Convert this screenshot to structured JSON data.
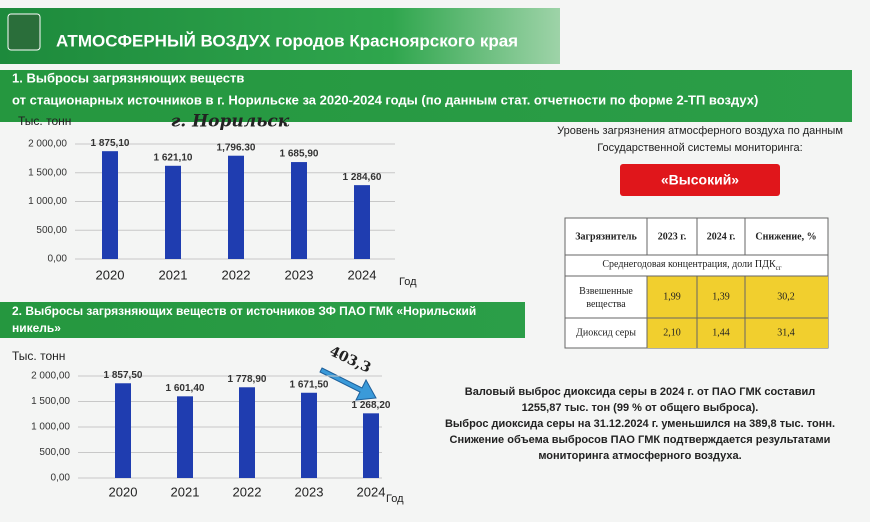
{
  "header": {
    "title": "АТМОСФЕРНЫЙ ВОЗДУХ городов Красноярского края"
  },
  "sections": [
    {
      "lines": [
        "1. Выбросы загрязняющих веществ",
        "от стационарных источников в г. Норильске за 2020-2024 годы (по данным стат. отчетности по форме 2-ТП воздух)"
      ]
    },
    {
      "lines": [
        "2. Выбросы загрязняющих веществ от источников ЗФ ПАО ГМК «Норильский",
        "никель»"
      ]
    }
  ],
  "chart_data": [
    {
      "type": "bar",
      "title": "г. Норильск",
      "y_label": "Тыс. тонн",
      "x_label": "Год",
      "color": "#1f3db0",
      "grid": true,
      "categories": [
        "2020",
        "2021",
        "2022",
        "2023",
        "2024"
      ],
      "values": [
        1875.1,
        1621.1,
        1796.3,
        1685.9,
        1284.6
      ],
      "value_labels": [
        "1 875,10",
        "1 621,10",
        "1,796.30",
        "1 685,90",
        "1 284,60"
      ],
      "ylim": [
        0,
        2000
      ],
      "yticks": [
        {
          "value": 0,
          "label": "0,00"
        },
        {
          "value": 500,
          "label": "500,00"
        },
        {
          "value": 1000,
          "label": "1 000,00"
        },
        {
          "value": 1500,
          "label": "1 500,00"
        },
        {
          "value": 2000,
          "label": "2 000,00"
        }
      ]
    },
    {
      "type": "bar",
      "annotation": "403,3",
      "y_label": "Тыс. тонн",
      "x_label": "Год",
      "color": "#1f3db0",
      "grid": true,
      "categories": [
        "2020",
        "2021",
        "2022",
        "2023",
        "2024"
      ],
      "values": [
        1857.5,
        1601.4,
        1778.9,
        1671.5,
        1268.2
      ],
      "value_labels": [
        "1 857,50",
        "1 601,40",
        "1 778,90",
        "1 671,50",
        "1 268,20"
      ],
      "ylim": [
        0,
        2000
      ],
      "yticks": [
        {
          "value": 0,
          "label": "0,00"
        },
        {
          "value": 500,
          "label": "500,00"
        },
        {
          "value": 1000,
          "label": "1 000,00"
        },
        {
          "value": 1500,
          "label": "1 500,00"
        },
        {
          "value": 2000,
          "label": "2 000,00"
        }
      ]
    }
  ],
  "monitoring": {
    "lines": [
      "Уровень загрязнения атмосферного воздуха по данным",
      "Государственной системы мониторинга:"
    ],
    "level": "«Высокий»"
  },
  "table": {
    "header": [
      "Загрязнитель",
      "2023 г.",
      "2024 г.",
      "Снижение, %"
    ],
    "subheader": [
      "Среднегодовая концентрация, доли ПДК",
      "сг"
    ],
    "rows": [
      [
        "Взвешенные вещества",
        "1,99",
        "1,39",
        "30,2"
      ],
      [
        "Диоксид серы",
        "2,10",
        "1,44",
        "31,4"
      ]
    ]
  },
  "notes": [
    "Валовый выброс диоксида серы в 2024 г. от  ПАО ГМК составил",
    "1255,87 тыс. тон (99 % от общего выброса).",
    "Выброс диоксида серы на 31.12.2024 г. уменьшился на 389,8 тыс. тонн.",
    "Снижение объема выбросов ПАО ГМК подтверждается результатами",
    "мониторинга атмосферного воздуха."
  ]
}
